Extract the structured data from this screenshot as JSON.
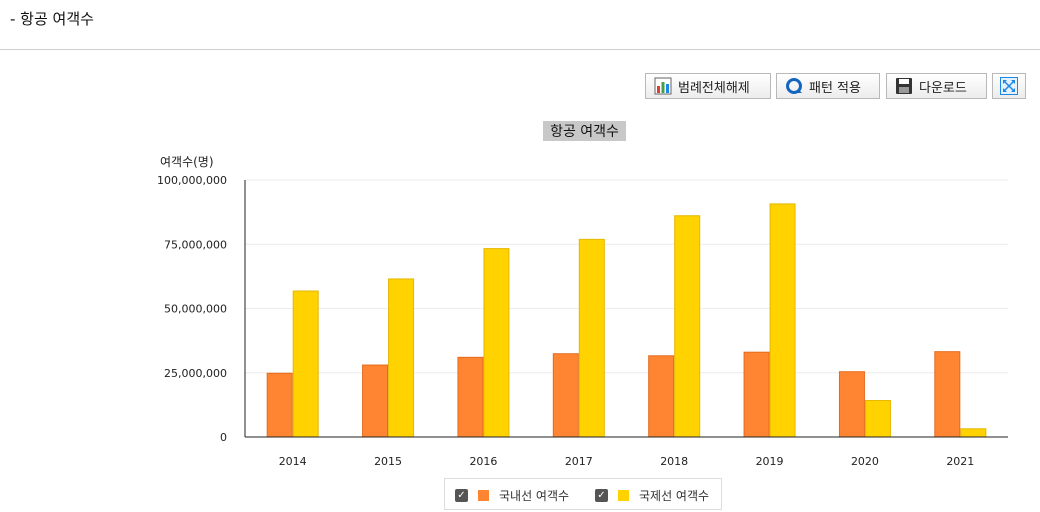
{
  "page": {
    "title": "- 항공 여객수"
  },
  "toolbar": {
    "legend_toggle_label": "범례전체해제",
    "pattern_label": "패턴 적용",
    "download_label": "다운로드"
  },
  "legend": {
    "check_mark": "✓"
  },
  "colors": {
    "domestic": "#FF8533",
    "domestic_border": "#E56A1C",
    "international": "#FFD200",
    "international_border": "#E5B800",
    "grid": "#ececec",
    "axis": "#222222"
  },
  "chart_data": {
    "type": "bar",
    "title": "항공 여객수",
    "ylabel": "여객수(명)",
    "xlabel": "",
    "categories": [
      "2014",
      "2015",
      "2016",
      "2017",
      "2018",
      "2019",
      "2020",
      "2021"
    ],
    "series": [
      {
        "name": "국내선 여객수",
        "values": [
          24800000,
          28000000,
          31000000,
          32400000,
          31600000,
          33000000,
          25400000,
          33200000
        ]
      },
      {
        "name": "국제선 여객수",
        "values": [
          56800000,
          61500000,
          73300000,
          76900000,
          86100000,
          90700000,
          14200000,
          3200000
        ]
      }
    ],
    "ylim": [
      0,
      100000000
    ],
    "yticks": [
      0,
      25000000,
      50000000,
      75000000,
      100000000
    ],
    "ytick_labels": [
      "0",
      "25,000,000",
      "50,000,000",
      "75,000,000",
      "100,000,000"
    ],
    "grid": true,
    "legend_position": "bottom-center"
  }
}
